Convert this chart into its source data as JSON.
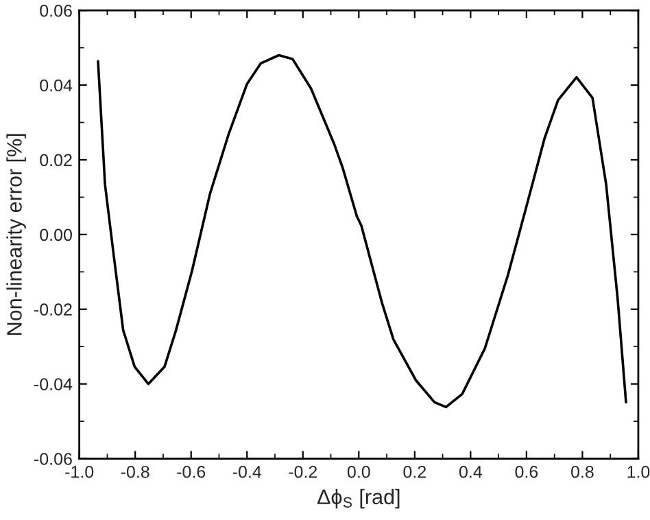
{
  "chart_data": {
    "type": "line",
    "xlabel": "Δϕ$_{S}$ [rad]",
    "ylabel": "Non-linearity error [%]",
    "xlim": [
      -1.0,
      1.0
    ],
    "ylim": [
      -0.06,
      0.06
    ],
    "xticks": [
      {
        "value": -1.0,
        "label": "-1.0"
      },
      {
        "value": -0.8,
        "label": "-0.8"
      },
      {
        "value": -0.6,
        "label": "-0.6"
      },
      {
        "value": -0.4,
        "label": "-0.4"
      },
      {
        "value": -0.2,
        "label": "-0.2"
      },
      {
        "value": 0.0,
        "label": "0.0"
      },
      {
        "value": 0.2,
        "label": "0.2"
      },
      {
        "value": 0.4,
        "label": "0.4"
      },
      {
        "value": 0.6,
        "label": "0.6"
      },
      {
        "value": 0.8,
        "label": "0.8"
      },
      {
        "value": 1.0,
        "label": "1.0"
      }
    ],
    "yticks": [
      {
        "value": -0.06,
        "label": "-0.06"
      },
      {
        "value": -0.04,
        "label": "-0.04"
      },
      {
        "value": -0.02,
        "label": "-0.02"
      },
      {
        "value": 0.0,
        "label": "0.00"
      },
      {
        "value": 0.02,
        "label": "0.02"
      },
      {
        "value": 0.04,
        "label": "0.04"
      },
      {
        "value": 0.06,
        "label": "0.06"
      }
    ],
    "grid": false,
    "legend": false,
    "marker": "none",
    "line_style": "solid",
    "series": [
      {
        "color": "#000000",
        "x": [
          -0.933,
          -0.908,
          -0.876,
          -0.843,
          -0.802,
          -0.753,
          -0.695,
          -0.654,
          -0.597,
          -0.532,
          -0.466,
          -0.4,
          -0.351,
          -0.286,
          -0.237,
          -0.171,
          -0.089,
          -0.057,
          -0.007,
          0.009,
          0.083,
          0.124,
          0.205,
          0.271,
          0.312,
          0.37,
          0.451,
          0.533,
          0.599,
          0.664,
          0.713,
          0.779,
          0.836,
          0.885,
          0.926,
          0.956
        ],
        "values": [
          0.0464,
          0.0134,
          -0.0061,
          -0.0256,
          -0.0354,
          -0.04,
          -0.0354,
          -0.0256,
          -0.0098,
          0.011,
          0.0268,
          0.0403,
          0.0458,
          0.048,
          0.047,
          0.0391,
          0.0244,
          0.0177,
          0.0049,
          0.0024,
          -0.0183,
          -0.0281,
          -0.0391,
          -0.0449,
          -0.0462,
          -0.0427,
          -0.0305,
          -0.011,
          0.0073,
          0.0256,
          0.036,
          0.0421,
          0.0366,
          0.0134,
          -0.0171,
          -0.0449
        ]
      }
    ]
  }
}
